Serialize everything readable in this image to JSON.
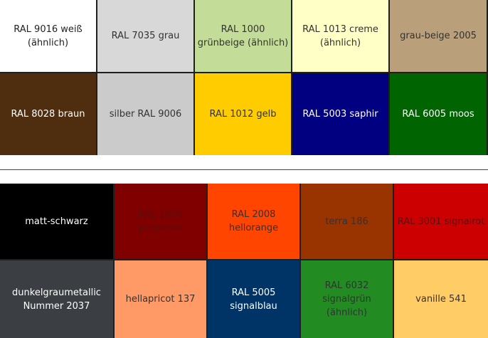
{
  "top_swatches": [
    {
      "label": "RAL 9016 weiß (ähnlich)",
      "color": "#ffffff",
      "text_color": "#222222"
    },
    {
      "label": "RAL 7035 grau",
      "color": "#d8d8d8",
      "text_color": "#333333"
    },
    {
      "label": "RAL 1000 grünbeige (ähnlich)",
      "color": "#c3dd98",
      "text_color": "#333333"
    },
    {
      "label": "RAL 1013 creme (ähnlich)",
      "color": "#ffffc6",
      "text_color": "#333333"
    },
    {
      "label": "grau-beige 2005",
      "color": "#b9a07a",
      "text_color": "#333333"
    },
    {
      "label": "RAL 8028 braun",
      "color": "#4e2e0e",
      "text_color": "#ffffff"
    },
    {
      "label": "silber RAL 9006",
      "color": "#cbcbcb",
      "text_color": "#333333"
    },
    {
      "label": "RAL 1012 gelb",
      "color": "#ffcc00",
      "text_color": "#333333"
    },
    {
      "label": "RAL 5003 saphir",
      "color": "#000080",
      "text_color": "#ffffff"
    },
    {
      "label": "RAL 6005 moos",
      "color": "#006400",
      "text_color": "#ffffff"
    }
  ],
  "bottom_swatches": [
    {
      "label": "matt-schwarz",
      "color": "#000000",
      "text_color": "#ffffff"
    },
    {
      "label": "RAL 3004 purpurrot",
      "color": "#800000",
      "text_color": "#5a0d0d"
    },
    {
      "label": "RAL 2008 hellorange",
      "color": "#ff4500",
      "text_color": "#333333"
    },
    {
      "label": "terra 186",
      "color": "#993300",
      "text_color": "#333333"
    },
    {
      "label": "RAL 3001 signalrot",
      "color": "#cc0000",
      "text_color": "#5a1010"
    },
    {
      "label": "dunkelgraumetallic Nummer 2037",
      "color": "#3b3e43",
      "text_color": "#ffffff"
    },
    {
      "label": "hellapricot 137",
      "color": "#ff9966",
      "text_color": "#333333"
    },
    {
      "label": "RAL 5005 signalblau",
      "color": "#003366",
      "text_color": "#ffffff"
    },
    {
      "label": "RAL 6032 signalgrün (ähnlich)",
      "color": "#228b22",
      "text_color": "#333333"
    },
    {
      "label": "vanille 541",
      "color": "#ffcc66",
      "text_color": "#333333"
    }
  ]
}
